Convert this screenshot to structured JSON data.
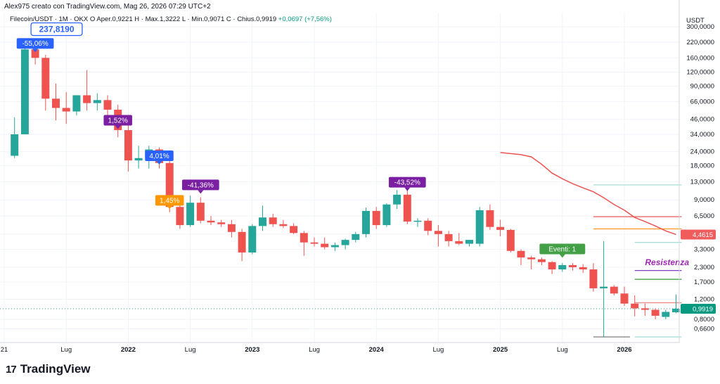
{
  "header": {
    "byline": "Alex975 creato con TradingView.com, Mag 26, 2026 07:29 UTC+2"
  },
  "legend": {
    "symbol": "Filecoin/USDT · 1M · OKX",
    "status": "O",
    "open": "Aper.0,9221",
    "high": "H · Max.1,3222",
    "low": "L · Min.0,9071",
    "close": "C · Chius.0,9919",
    "change": "+0,0697 (+7,56%)"
  },
  "brand": {
    "logo": "17",
    "name": "TradingView"
  },
  "chart_data": {
    "type": "candlestick",
    "scale": "log",
    "ylim": [
      0.5,
      400
    ],
    "axis_unit": "USDT",
    "y_ticks": [
      "300,0000",
      "220,0000",
      "160,0000",
      "120,0000",
      "90,0000",
      "66,0000",
      "46,0000",
      "34,0000",
      "24,0000",
      "18,0000",
      "13,0000",
      "9,0000",
      "6,5000",
      "4,5000",
      "3,3000",
      "2,3000",
      "1,7000",
      "1,2000",
      "0,8000",
      "0,6600"
    ],
    "y_tick_values": [
      300,
      220,
      160,
      120,
      90,
      66,
      46,
      34,
      24,
      18,
      13,
      9,
      6.5,
      4.5,
      3.3,
      2.3,
      1.7,
      1.2,
      0.8,
      0.66
    ],
    "x_ticks": [
      {
        "label": "21",
        "month": 0
      },
      {
        "label": "Lug",
        "month": 6
      },
      {
        "label": "2022",
        "month": 12
      },
      {
        "label": "Lug",
        "month": 18
      },
      {
        "label": "2023",
        "month": 24
      },
      {
        "label": "Lug",
        "month": 30
      },
      {
        "label": "2024",
        "month": 36
      },
      {
        "label": "Lug",
        "month": 42
      },
      {
        "label": "2025",
        "month": 48
      },
      {
        "label": "Lug",
        "month": 54
      },
      {
        "label": "2026",
        "month": 60
      }
    ],
    "candles": [
      {
        "m": 1,
        "o": 22,
        "h": 48,
        "l": 21,
        "c": 34
      },
      {
        "m": 2,
        "o": 34,
        "h": 205,
        "l": 34,
        "c": 190
      },
      {
        "m": 3,
        "o": 190,
        "h": 237.819,
        "l": 140,
        "c": 160
      },
      {
        "m": 4,
        "o": 160,
        "h": 170,
        "l": 55,
        "c": 70
      },
      {
        "m": 5,
        "o": 70,
        "h": 95,
        "l": 45,
        "c": 58
      },
      {
        "m": 6,
        "o": 58,
        "h": 80,
        "l": 42,
        "c": 54
      },
      {
        "m": 7,
        "o": 54,
        "h": 75,
        "l": 50,
        "c": 75
      },
      {
        "m": 8,
        "o": 75,
        "h": 125,
        "l": 55,
        "c": 64
      },
      {
        "m": 9,
        "o": 64,
        "h": 78,
        "l": 55,
        "c": 68
      },
      {
        "m": 10,
        "o": 68,
        "h": 75,
        "l": 46,
        "c": 56
      },
      {
        "m": 11,
        "o": 56,
        "h": 62,
        "l": 32,
        "c": 37
      },
      {
        "m": 12,
        "o": 37,
        "h": 41,
        "l": 16,
        "c": 20
      },
      {
        "m": 13,
        "o": 20,
        "h": 27,
        "l": 17,
        "c": 21
      },
      {
        "m": 14,
        "o": 21,
        "h": 27,
        "l": 17,
        "c": 25
      },
      {
        "m": 15,
        "o": 25,
        "h": 26,
        "l": 17,
        "c": 19
      },
      {
        "m": 16,
        "o": 19,
        "h": 20,
        "l": 7,
        "c": 7.8
      },
      {
        "m": 17,
        "o": 7.8,
        "h": 9.2,
        "l": 5.0,
        "c": 5.4
      },
      {
        "m": 18,
        "o": 5.4,
        "h": 9.8,
        "l": 5.2,
        "c": 8.5
      },
      {
        "m": 19,
        "o": 8.5,
        "h": 9.5,
        "l": 5.6,
        "c": 5.9
      },
      {
        "m": 20,
        "o": 5.9,
        "h": 6.5,
        "l": 5.4,
        "c": 5.7
      },
      {
        "m": 21,
        "o": 5.7,
        "h": 6.0,
        "l": 5.2,
        "c": 5.5
      },
      {
        "m": 22,
        "o": 5.5,
        "h": 6.0,
        "l": 4.2,
        "c": 4.7
      },
      {
        "m": 23,
        "o": 4.7,
        "h": 5.0,
        "l": 2.6,
        "c": 3.1
      },
      {
        "m": 24,
        "o": 3.1,
        "h": 5.5,
        "l": 3.0,
        "c": 5.3
      },
      {
        "m": 25,
        "o": 5.3,
        "h": 8.0,
        "l": 4.8,
        "c": 6.3
      },
      {
        "m": 26,
        "o": 6.3,
        "h": 6.8,
        "l": 5.2,
        "c": 5.5
      },
      {
        "m": 27,
        "o": 5.5,
        "h": 6.0,
        "l": 5.1,
        "c": 5.3
      },
      {
        "m": 28,
        "o": 5.3,
        "h": 5.6,
        "l": 4.5,
        "c": 4.6
      },
      {
        "m": 29,
        "o": 4.6,
        "h": 4.8,
        "l": 2.9,
        "c": 3.8
      },
      {
        "m": 30,
        "o": 3.8,
        "h": 4.2,
        "l": 3.5,
        "c": 3.7
      },
      {
        "m": 31,
        "o": 3.7,
        "h": 4.2,
        "l": 3.3,
        "c": 3.45
      },
      {
        "m": 32,
        "o": 3.45,
        "h": 3.8,
        "l": 3.2,
        "c": 3.6
      },
      {
        "m": 33,
        "o": 3.6,
        "h": 4.1,
        "l": 3.3,
        "c": 4.0
      },
      {
        "m": 34,
        "o": 4.0,
        "h": 4.7,
        "l": 3.8,
        "c": 4.5
      },
      {
        "m": 35,
        "o": 4.5,
        "h": 7.7,
        "l": 4.2,
        "c": 7.2
      },
      {
        "m": 36,
        "o": 7.2,
        "h": 7.8,
        "l": 5.0,
        "c": 5.4
      },
      {
        "m": 37,
        "o": 5.4,
        "h": 8.4,
        "l": 5.2,
        "c": 8.2
      },
      {
        "m": 38,
        "o": 8.2,
        "h": 11.0,
        "l": 7.5,
        "c": 10.0
      },
      {
        "m": 39,
        "o": 10.0,
        "h": 11.0,
        "l": 5.5,
        "c": 5.8
      },
      {
        "m": 40,
        "o": 5.8,
        "h": 6.2,
        "l": 5.2,
        "c": 5.9
      },
      {
        "m": 41,
        "o": 5.9,
        "h": 6.2,
        "l": 4.4,
        "c": 4.8
      },
      {
        "m": 42,
        "o": 4.8,
        "h": 5.4,
        "l": 3.5,
        "c": 4.5
      },
      {
        "m": 43,
        "o": 4.5,
        "h": 4.8,
        "l": 3.5,
        "c": 3.9
      },
      {
        "m": 44,
        "o": 3.9,
        "h": 4.6,
        "l": 3.6,
        "c": 3.7
      },
      {
        "m": 45,
        "o": 3.7,
        "h": 4.0,
        "l": 3.5,
        "c": 4.0
      },
      {
        "m": 46,
        "o": 3.7,
        "h": 7.8,
        "l": 3.5,
        "c": 7.3
      },
      {
        "m": 47,
        "o": 7.3,
        "h": 8.2,
        "l": 4.9,
        "c": 5.2
      },
      {
        "m": 48,
        "o": 5.2,
        "h": 6.0,
        "l": 4.3,
        "c": 4.9
      },
      {
        "m": 49,
        "o": 4.9,
        "h": 5.0,
        "l": 3.1,
        "c": 3.2
      },
      {
        "m": 50,
        "o": 3.2,
        "h": 3.3,
        "l": 2.4,
        "c": 2.8
      },
      {
        "m": 51,
        "o": 2.8,
        "h": 2.9,
        "l": 2.2,
        "c": 2.7
      },
      {
        "m": 52,
        "o": 2.7,
        "h": 2.8,
        "l": 2.4,
        "c": 2.55
      },
      {
        "m": 53,
        "o": 2.55,
        "h": 2.6,
        "l": 2.0,
        "c": 2.2
      },
      {
        "m": 54,
        "o": 2.2,
        "h": 2.5,
        "l": 2.1,
        "c": 2.4
      },
      {
        "m": 55,
        "o": 2.4,
        "h": 2.5,
        "l": 2.15,
        "c": 2.3
      },
      {
        "m": 56,
        "o": 2.3,
        "h": 2.45,
        "l": 2.05,
        "c": 2.2
      },
      {
        "m": 57,
        "o": 2.2,
        "h": 2.5,
        "l": 1.4,
        "c": 1.5
      },
      {
        "m": 58,
        "o": 1.5,
        "h": 3.9,
        "l": 0.56,
        "c": 1.55
      },
      {
        "m": 59,
        "o": 1.55,
        "h": 1.6,
        "l": 1.3,
        "c": 1.35
      },
      {
        "m": 60,
        "o": 1.35,
        "h": 1.55,
        "l": 1.05,
        "c": 1.1
      },
      {
        "m": 61,
        "o": 1.1,
        "h": 1.3,
        "l": 0.85,
        "c": 1.0
      },
      {
        "m": 62,
        "o": 1.0,
        "h": 1.1,
        "l": 0.86,
        "c": 0.97
      },
      {
        "m": 63,
        "o": 0.97,
        "h": 1.0,
        "l": 0.8,
        "c": 0.86
      },
      {
        "m": 64,
        "o": 0.84,
        "h": 0.97,
        "l": 0.8,
        "c": 0.93
      },
      {
        "m": 65,
        "o": 0.9221,
        "h": 1.3222,
        "l": 0.9071,
        "c": 0.9919
      }
    ],
    "moving_average": [
      [
        48,
        23.5
      ],
      [
        49,
        23
      ],
      [
        50,
        22.5
      ],
      [
        51,
        21.5
      ],
      [
        52,
        18.5
      ],
      [
        53,
        15.5
      ],
      [
        54,
        13.8
      ],
      [
        55,
        12.5
      ],
      [
        56,
        11.5
      ],
      [
        57,
        10.6
      ],
      [
        58,
        9.4
      ],
      [
        59,
        8.2
      ],
      [
        60,
        7.3
      ],
      [
        61,
        6.3
      ],
      [
        62,
        5.8
      ],
      [
        63,
        5.3
      ],
      [
        64,
        4.8
      ],
      [
        65,
        4.46
      ]
    ],
    "levels": [
      {
        "y": 12.2,
        "m0": 57,
        "m1": 65,
        "color": "#a7dfd6"
      },
      {
        "y": 6.4,
        "m0": 57,
        "m1": 65,
        "color": "#f05c5c"
      },
      {
        "y": 5.0,
        "m0": 57,
        "m1": 65,
        "color": "#ff9a2e"
      },
      {
        "y": 3.8,
        "m0": 61,
        "m1": 65,
        "color": "#a7dfd6"
      },
      {
        "y": 2.15,
        "m0": 61,
        "m1": 65,
        "color": "#7b3fbf"
      },
      {
        "y": 1.8,
        "m0": 61,
        "m1": 65,
        "color": "#3a9a3a"
      },
      {
        "y": 1.12,
        "m0": 61,
        "m1": 65,
        "color": "#f08a8a"
      },
      {
        "y": 0.56,
        "m0": 61,
        "m1": 65,
        "color": "#a7dfd6"
      },
      {
        "y": 0.56,
        "m0": 57,
        "m1": 60,
        "color": "#888888"
      }
    ],
    "annotations": [
      {
        "text": "237,8190",
        "kind": "callout",
        "m": 3,
        "y": 237.819,
        "color": "#2962ff"
      },
      {
        "text": "-55,06%",
        "kind": "label",
        "m": 3,
        "y": 190,
        "color": "#2962ff"
      },
      {
        "text": "1,52%",
        "kind": "label",
        "m": 11,
        "y": 40,
        "color": "#7b1fa2"
      },
      {
        "text": "4,01%",
        "kind": "label",
        "m": 15,
        "y": 19.5,
        "color": "#2962ff"
      },
      {
        "text": "-41,36%",
        "kind": "label",
        "m": 19,
        "y": 10.8,
        "color": "#7b1fa2"
      },
      {
        "text": "1,45%",
        "kind": "label",
        "m": 16,
        "y": 7.9,
        "color": "#ff9800"
      },
      {
        "text": "-43,52%",
        "kind": "label",
        "m": 39,
        "y": 11.4,
        "color": "#7b1fa2"
      },
      {
        "text": "Eventi: 1",
        "kind": "label",
        "m": 54,
        "y": 2.95,
        "color": "#43a047"
      },
      {
        "text": "Resistenza",
        "kind": "italic",
        "m": 62,
        "y": 2.4,
        "color": "#9c27b0"
      }
    ],
    "price_labels": [
      {
        "text": "4,4615",
        "y": 4.4615,
        "color": "#f05c5c"
      },
      {
        "text": "0,9919",
        "y": 0.9919,
        "color": "#089981"
      }
    ],
    "colors": {
      "up": "#26a69a",
      "down": "#ef5350",
      "ma": "#ef5350"
    }
  }
}
